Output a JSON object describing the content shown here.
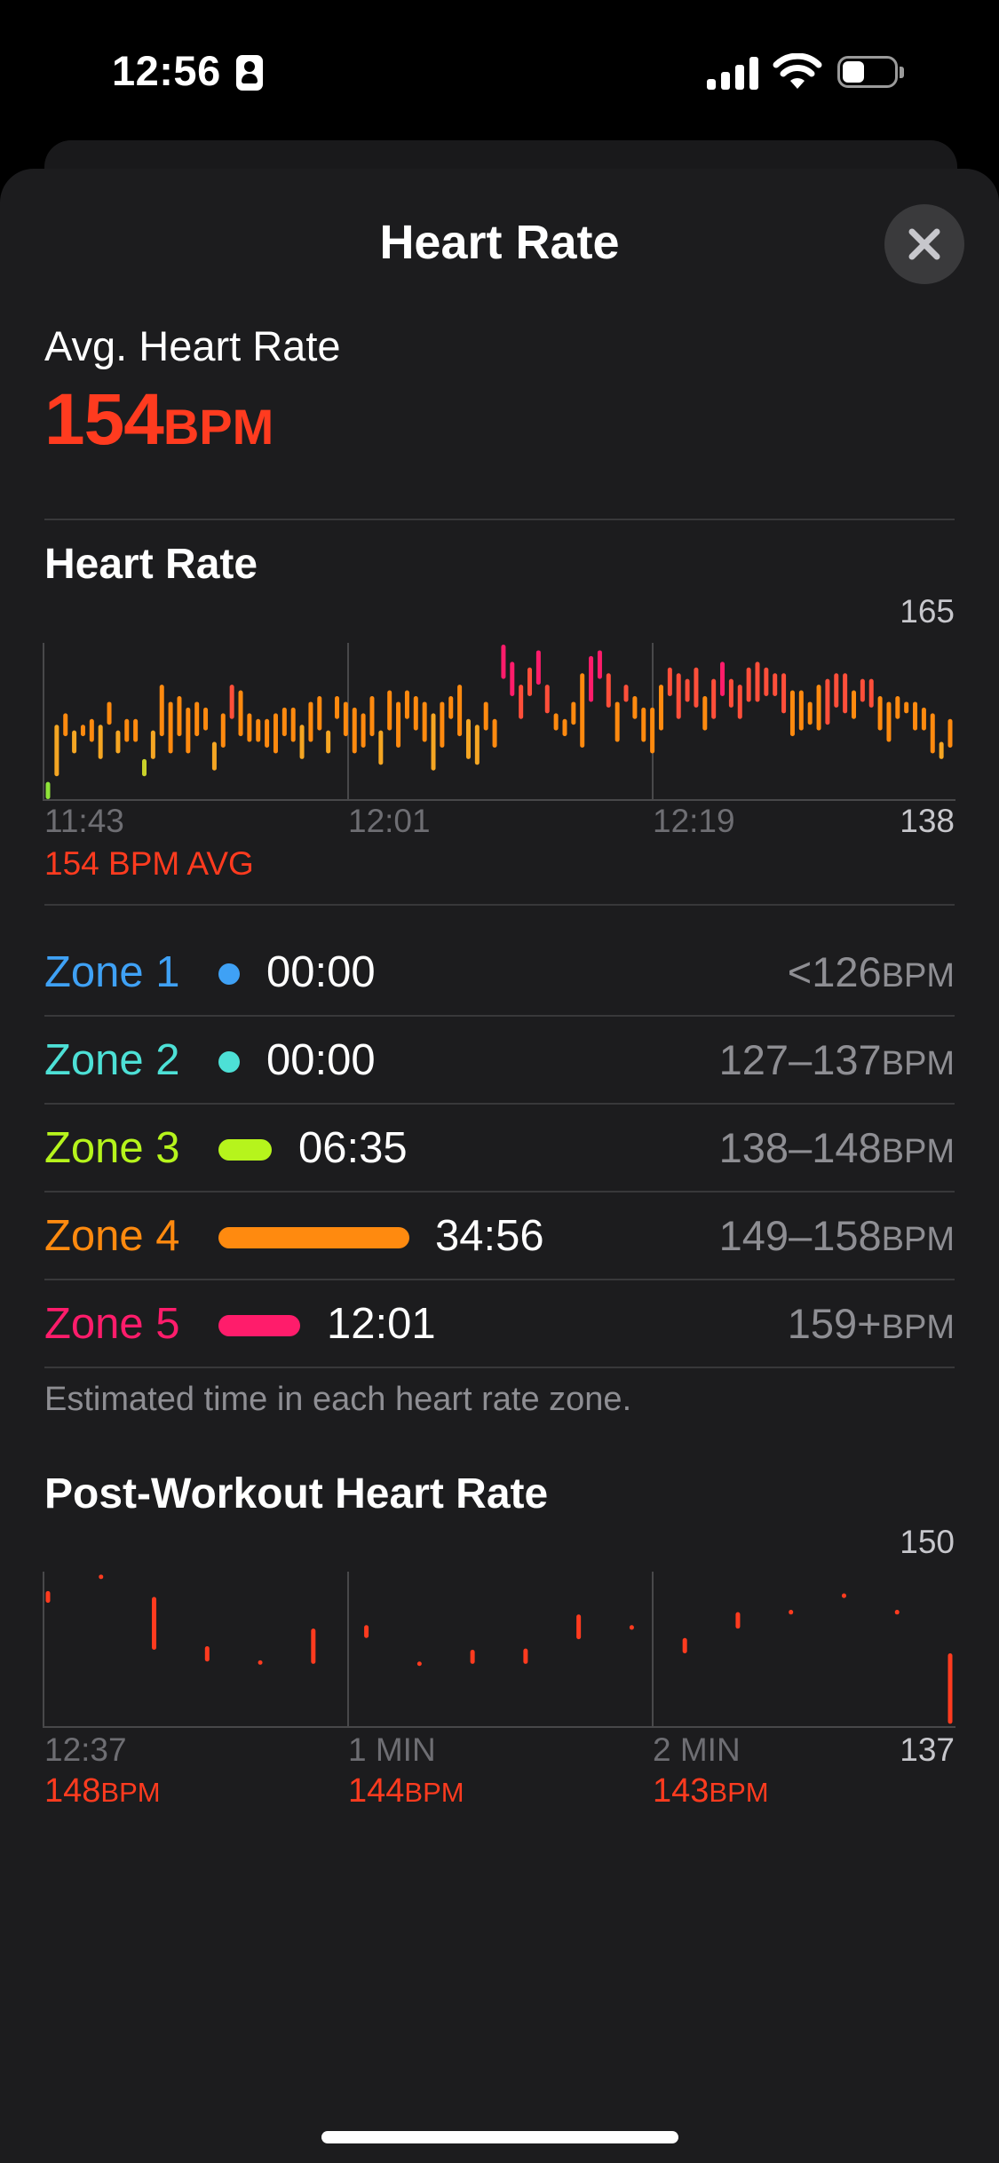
{
  "status_bar": {
    "time": "12:56"
  },
  "sheet": {
    "title": "Heart Rate",
    "close_label": "×"
  },
  "average": {
    "label": "Avg. Heart Rate",
    "value": "154",
    "unit": "BPM"
  },
  "heart_rate_chart": {
    "title": "Heart Rate",
    "y_max_label": "165",
    "y_min_label": "138",
    "x_labels": [
      "11:43",
      "12:01",
      "12:19"
    ],
    "avg_label": "154 BPM AVG"
  },
  "zones": [
    {
      "name": "Zone 1",
      "time": "00:00",
      "range": "<126",
      "unit": "BPM",
      "color": "#3fa1f5",
      "bar_fraction": 0
    },
    {
      "name": "Zone 2",
      "time": "00:00",
      "range": "127–137",
      "unit": "BPM",
      "color": "#4de0d6",
      "bar_fraction": 0
    },
    {
      "name": "Zone 3",
      "time": "06:35",
      "range": "138–148",
      "unit": "BPM",
      "color": "#b6f41c",
      "bar_fraction": 0.188
    },
    {
      "name": "Zone 4",
      "time": "34:56",
      "range": "149–158",
      "unit": "BPM",
      "color": "#ff8a0f",
      "bar_fraction": 1.0
    },
    {
      "name": "Zone 5",
      "time": "12:01",
      "range": "159+",
      "unit": "BPM",
      "color": "#ff1c6b",
      "bar_fraction": 0.344
    }
  ],
  "zones_footnote": "Estimated time in each heart rate zone.",
  "post_workout": {
    "title": "Post-Workout Heart Rate",
    "y_max_label": "150",
    "y_min_label": "137",
    "markers": [
      {
        "label": "12:37",
        "value": "148",
        "unit": "BPM"
      },
      {
        "label": "1 MIN",
        "value": "144",
        "unit": "BPM"
      },
      {
        "label": "2 MIN",
        "value": "143",
        "unit": "BPM"
      }
    ]
  },
  "chart_data": [
    {
      "type": "bar",
      "title": "Heart Rate",
      "ylim": [
        138,
        165
      ],
      "x_ticks": [
        "11:43",
        "12:01",
        "12:19"
      ],
      "series": [
        {
          "values": [
            [
              138,
              141
            ],
            [
              142,
              151
            ],
            [
              149,
              153
            ],
            [
              146,
              150
            ],
            [
              149,
              151
            ],
            [
              148,
              152
            ],
            [
              145,
              151
            ],
            [
              151,
              155
            ],
            [
              146,
              150
            ],
            [
              148,
              152
            ],
            [
              148,
              152
            ],
            [
              142,
              145
            ],
            [
              145,
              150
            ],
            [
              149,
              158
            ],
            [
              146,
              155
            ],
            [
              149,
              156
            ],
            [
              146,
              154
            ],
            [
              149,
              155
            ],
            [
              150,
              154
            ],
            [
              143,
              148
            ],
            [
              147,
              153
            ],
            [
              152,
              158
            ],
            [
              149,
              157
            ],
            [
              148,
              153
            ],
            [
              148,
              152
            ],
            [
              147,
              152
            ],
            [
              146,
              153
            ],
            [
              149,
              154
            ],
            [
              148,
              154
            ],
            [
              145,
              151
            ],
            [
              148,
              155
            ],
            [
              150,
              156
            ],
            [
              146,
              150
            ],
            [
              152,
              156
            ],
            [
              149,
              155
            ],
            [
              146,
              154
            ],
            [
              147,
              153
            ],
            [
              149,
              156
            ],
            [
              144,
              150
            ],
            [
              150,
              157
            ],
            [
              147,
              155
            ],
            [
              152,
              157
            ],
            [
              150,
              156
            ],
            [
              148,
              155
            ],
            [
              143,
              153
            ],
            [
              147,
              155
            ],
            [
              152,
              156
            ],
            [
              149,
              158
            ],
            [
              145,
              152
            ],
            [
              144,
              151
            ],
            [
              150,
              155
            ],
            [
              147,
              152
            ],
            [
              159,
              165
            ],
            [
              156,
              162
            ],
            [
              152,
              158
            ],
            [
              156,
              161
            ],
            [
              158,
              164
            ],
            [
              153,
              158
            ],
            [
              150,
              153
            ],
            [
              149,
              152
            ],
            [
              151,
              155
            ],
            [
              147,
              160
            ],
            [
              155,
              163
            ],
            [
              159,
              164
            ],
            [
              154,
              160
            ],
            [
              148,
              155
            ],
            [
              155,
              158
            ],
            [
              152,
              156
            ],
            [
              148,
              154
            ],
            [
              146,
              154
            ],
            [
              150,
              158
            ],
            [
              156,
              161
            ],
            [
              152,
              160
            ],
            [
              155,
              159
            ],
            [
              154,
              161
            ],
            [
              150,
              156
            ],
            [
              152,
              159
            ],
            [
              156,
              162
            ],
            [
              154,
              159
            ],
            [
              152,
              158
            ],
            [
              155,
              161
            ],
            [
              155,
              162
            ],
            [
              156,
              161
            ],
            [
              156,
              160
            ],
            [
              153,
              160
            ],
            [
              149,
              157
            ],
            [
              150,
              157
            ],
            [
              151,
              155
            ],
            [
              150,
              158
            ],
            [
              151,
              159
            ],
            [
              154,
              160
            ],
            [
              153,
              160
            ],
            [
              152,
              157
            ],
            [
              155,
              159
            ],
            [
              154,
              159
            ],
            [
              150,
              156
            ],
            [
              148,
              155
            ],
            [
              152,
              156
            ],
            [
              153,
              155
            ],
            [
              150,
              155
            ],
            [
              150,
              154
            ],
            [
              146,
              153
            ],
            [
              145,
              148
            ],
            [
              147,
              152
            ]
          ]
        }
      ],
      "average": 154
    },
    {
      "type": "bar",
      "title": "Post-Workout Heart Rate",
      "ylim": [
        137,
        150
      ],
      "x_ticks": [
        "12:37",
        "1 MIN",
        "2 MIN"
      ],
      "series": [
        {
          "values": [
            [
              147.5,
              148.5
            ],
            [
              149.6,
              149.9
            ],
            [
              143.5,
              148.0
            ],
            [
              142.5,
              143.8
            ],
            [
              142.3,
              142.6
            ],
            [
              142.3,
              145.3
            ],
            [
              144.5,
              145.6
            ],
            [
              142.2,
              142.5
            ],
            [
              142.3,
              143.5
            ],
            [
              142.3,
              143.6
            ],
            [
              144.4,
              146.5
            ],
            [
              145.2,
              145.6
            ],
            [
              143.2,
              144.5
            ],
            [
              145.3,
              146.7
            ],
            [
              146.5,
              146.9
            ],
            [
              147.9,
              148.3
            ],
            [
              146.5,
              146.9
            ],
            [
              137.2,
              143.2
            ]
          ]
        }
      ],
      "markers": [
        {
          "x": "12:37",
          "value": 148
        },
        {
          "x": "1 MIN",
          "value": 144
        },
        {
          "x": "2 MIN",
          "value": 143
        }
      ]
    }
  ]
}
